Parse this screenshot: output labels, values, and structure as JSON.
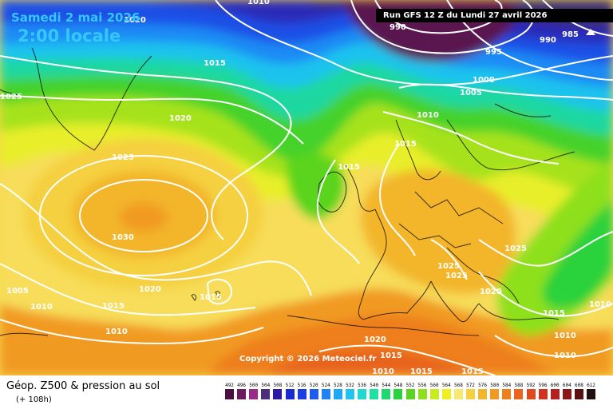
{
  "header": {
    "date": "Samedi 2 mai 2026",
    "local_time": "2:00 locale",
    "run": "Run GFS 12 Z du Lundi 27 avril 2026",
    "copyright": "Copyright © 2026 Meteociel.fr"
  },
  "footer": {
    "title": "Géop. Z500 & pression au sol",
    "lead": "(+ 108h)"
  },
  "legend": {
    "values": [
      "492",
      "496",
      "500",
      "504",
      "508",
      "512",
      "516",
      "520",
      "524",
      "528",
      "532",
      "536",
      "540",
      "544",
      "548",
      "552",
      "556",
      "560",
      "564",
      "568",
      "572",
      "576",
      "580",
      "584",
      "588",
      "592",
      "596",
      "600",
      "604",
      "608",
      "612"
    ],
    "colors": [
      "#4b1040",
      "#701a5e",
      "#9a2a85",
      "#4a2f7a",
      "#2a1aa5",
      "#1a2bd0",
      "#1c3de6",
      "#1f5bef",
      "#1f83f5",
      "#1fa8f5",
      "#22c3ef",
      "#1fd9d0",
      "#1fe0a0",
      "#1fd86e",
      "#2ad23b",
      "#5ad41f",
      "#8ee01f",
      "#c8ec1f",
      "#f0f020",
      "#f6e870",
      "#f5d040",
      "#f3b52a",
      "#f19a22",
      "#ee7f1f",
      "#e8641f",
      "#df4a1f",
      "#d0321f",
      "#b52020",
      "#8a1818",
      "#5a1010",
      "#201010"
    ]
  },
  "isobars": {
    "top": [
      "1010",
      "1020",
      "1025"
    ],
    "mid": [
      "1015",
      "1020",
      "1025",
      "1030",
      "1010",
      "1005"
    ],
    "low": [
      "990",
      "985",
      "995",
      "1000",
      "1005",
      "1010",
      "1015",
      "1015"
    ],
    "eu": [
      "1025",
      "1025",
      "1020",
      "1025",
      "1015"
    ],
    "south": [
      "1010",
      "1015",
      "1020",
      "1010",
      "1015",
      "1010",
      "1015",
      "1015",
      "1010",
      "1010"
    ]
  },
  "colors": {
    "accent_text": "#35c8ff",
    "isobar": "#ffffff",
    "coastline": "#000000",
    "background": "#ffffff"
  },
  "icons": [
    "low-pressure-marker-icon"
  ]
}
